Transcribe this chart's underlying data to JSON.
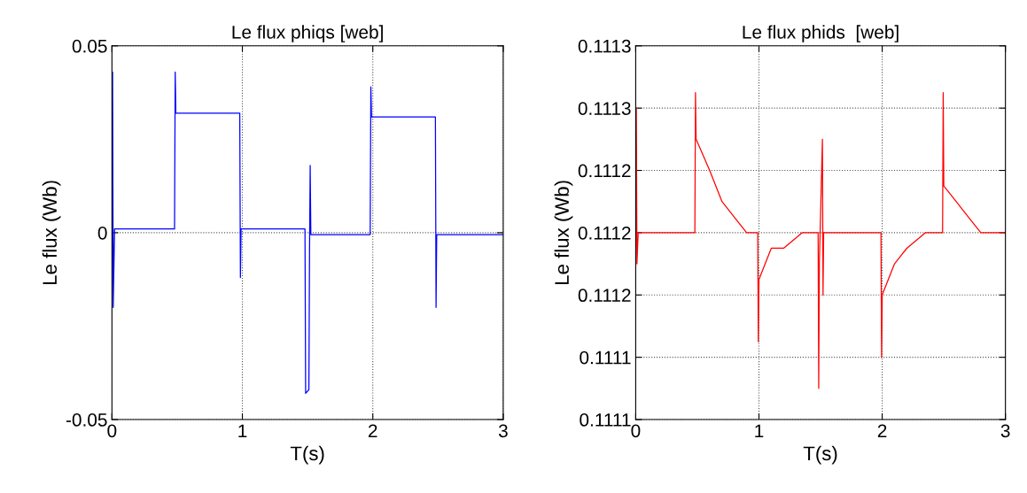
{
  "chart_data": [
    {
      "type": "line",
      "title": "Le flux phiqs [web]",
      "xlabel": "T(s)",
      "ylabel": "Le flux (Wb)",
      "xlim": [
        0,
        3
      ],
      "xticks": [
        0,
        1,
        2,
        3
      ],
      "ylim": [
        -0.05,
        0.05
      ],
      "yticks": [
        -0.05,
        0,
        0.05
      ],
      "grid": true,
      "marker": "none",
      "line_style": "solid",
      "series": [
        {
          "color": "#0000ff",
          "x": [
            0,
            0.005,
            0.01,
            0.02,
            0.48,
            0.485,
            0.49,
            0.98,
            0.985,
            0.99,
            1.48,
            1.485,
            1.51,
            1.515,
            1.52,
            1.525,
            1.98,
            1.985,
            1.99,
            2.48,
            2.485,
            2.49,
            3.0
          ],
          "values": [
            0.001,
            0.043,
            -0.02,
            0.001,
            0.001,
            0.043,
            0.032,
            0.032,
            -0.012,
            0.001,
            0.001,
            -0.043,
            -0.042,
            -0.005,
            0.018,
            -0.0005,
            -0.0005,
            0.039,
            0.031,
            0.031,
            -0.02,
            -0.0005,
            -0.0005
          ]
        }
      ]
    },
    {
      "type": "line",
      "title": "Le flux phids  [web]",
      "xlabel": "T(s)",
      "ylabel": "Le flux (Wb)",
      "xlim": [
        0,
        3
      ],
      "xticks": [
        0,
        1,
        2,
        3
      ],
      "ylim": [
        0.11108,
        0.11132
      ],
      "yticks": [
        {
          "value": 0.11108,
          "label": "0.1111"
        },
        {
          "value": 0.11112,
          "label": "0.1111"
        },
        {
          "value": 0.11116,
          "label": "0.1112"
        },
        {
          "value": 0.1112,
          "label": "0.1112"
        },
        {
          "value": 0.11124,
          "label": "0.1112"
        },
        {
          "value": 0.11128,
          "label": "0.1113"
        },
        {
          "value": 0.11132,
          "label": "0.1113"
        }
      ],
      "grid": true,
      "marker": "none",
      "line_style": "solid",
      "series": [
        {
          "color": "#ff0000",
          "x": [
            0,
            0.005,
            0.01,
            0.02,
            0.48,
            0.485,
            0.49,
            0.6,
            0.7,
            0.8,
            0.9,
            0.99,
            0.995,
            1.0,
            1.1,
            1.2,
            1.35,
            1.48,
            1.485,
            1.49,
            1.515,
            1.52,
            1.525,
            1.99,
            1.995,
            2.0,
            2.1,
            2.2,
            2.35,
            2.49,
            2.495,
            2.5,
            2.6,
            2.7,
            2.8,
            3.0
          ],
          "values": [
            0.1112,
            0.11128,
            0.11118,
            0.1112,
            0.1112,
            0.11129,
            0.11126,
            0.11124,
            0.11122,
            0.11121,
            0.1112,
            0.1112,
            0.11113,
            0.11117,
            0.11119,
            0.11119,
            0.1112,
            0.1112,
            0.1111,
            0.11118,
            0.11126,
            0.11116,
            0.1112,
            0.1112,
            0.11112,
            0.11116,
            0.11118,
            0.11119,
            0.1112,
            0.1112,
            0.11129,
            0.11123,
            0.11122,
            0.11121,
            0.1112,
            0.1112
          ]
        }
      ]
    }
  ]
}
